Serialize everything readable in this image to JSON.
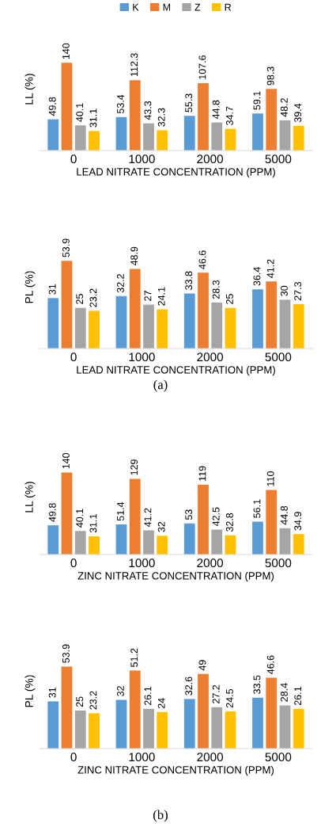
{
  "chart_data": [
    {
      "type": "bar",
      "ylabel": "LL (%)",
      "xlabel": "LEAD NITRATE CONCENTRATION (PPM)",
      "categories": [
        "0",
        "1000",
        "2000",
        "5000"
      ],
      "legend": "top",
      "data_labels": true,
      "grid": false,
      "series": [
        {
          "name": "K",
          "color": "#5b9bd5",
          "values": [
            49.8,
            53.4,
            55.3,
            59.1
          ]
        },
        {
          "name": "M",
          "color": "#ed7d31",
          "values": [
            140,
            112.3,
            107.6,
            98.3
          ]
        },
        {
          "name": "Z",
          "color": "#a5a5a5",
          "values": [
            40.1,
            43.3,
            44.8,
            48.2
          ]
        },
        {
          "name": "R",
          "color": "#ffc000",
          "values": [
            31.1,
            32.3,
            34.7,
            39.4
          ]
        }
      ]
    },
    {
      "type": "bar",
      "ylabel": "PL (%)",
      "xlabel": "LEAD NITRATE CONCENTRATION (PPM)",
      "categories": [
        "0",
        "1000",
        "2000",
        "5000"
      ],
      "data_labels": true,
      "grid": false,
      "annotations": [
        "(a)"
      ],
      "series": [
        {
          "color": "#5b9bd5",
          "values": [
            31,
            32.2,
            33.8,
            36.4
          ]
        },
        {
          "color": "#ed7d31",
          "values": [
            53.9,
            48.9,
            46.6,
            41.2
          ]
        },
        {
          "color": "#a5a5a5",
          "values": [
            25,
            27,
            28.3,
            30
          ]
        },
        {
          "color": "#ffc000",
          "values": [
            23.2,
            24.1,
            25,
            27.3
          ]
        }
      ]
    },
    {
      "type": "bar",
      "ylabel": "LL (%)",
      "xlabel": "ZINC NITRATE CONCENTRATION (PPM)",
      "categories": [
        "0",
        "1000",
        "2000",
        "5000"
      ],
      "data_labels": true,
      "grid": false,
      "series": [
        {
          "color": "#5b9bd5",
          "values": [
            49.8,
            51.4,
            53,
            56.1
          ]
        },
        {
          "color": "#ed7d31",
          "values": [
            140,
            129,
            119,
            110
          ]
        },
        {
          "color": "#a5a5a5",
          "values": [
            40.1,
            41.2,
            42.5,
            44.8
          ]
        },
        {
          "color": "#ffc000",
          "values": [
            31.1,
            32,
            32.8,
            34.9
          ]
        }
      ]
    },
    {
      "type": "bar",
      "ylabel": "PL (%)",
      "xlabel": "ZINC NITRATE CONCENTRATION (PPM)",
      "categories": [
        "0",
        "1000",
        "2000",
        "5000"
      ],
      "data_labels": true,
      "grid": false,
      "annotations": [
        "(b)"
      ],
      "series": [
        {
          "color": "#5b9bd5",
          "values": [
            31,
            32,
            32.6,
            33.5
          ]
        },
        {
          "color": "#ed7d31",
          "values": [
            53.9,
            51.2,
            49,
            46.6
          ]
        },
        {
          "color": "#a5a5a5",
          "values": [
            25,
            26.1,
            27.2,
            28.4
          ]
        },
        {
          "color": "#ffc000",
          "values": [
            23.2,
            24,
            24.5,
            26.1
          ]
        }
      ]
    }
  ]
}
